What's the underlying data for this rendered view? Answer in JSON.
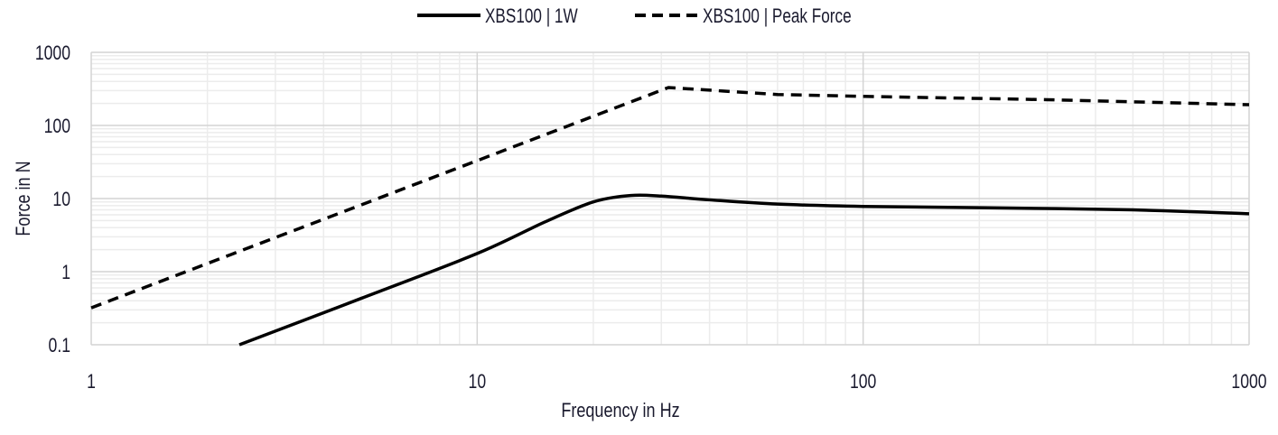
{
  "chart_data": {
    "type": "line",
    "title": "",
    "xlabel": "Frequency in Hz",
    "ylabel": "Force in N",
    "xscale": "log",
    "yscale": "log",
    "xlim": [
      1,
      1000
    ],
    "ylim": [
      0.1,
      1000
    ],
    "grid": true,
    "legend_position": "top-center",
    "x_ticks": [
      "1",
      "10",
      "100",
      "1000"
    ],
    "y_ticks": [
      "0.1",
      "1",
      "10",
      "100",
      "1000"
    ],
    "series": [
      {
        "name": "XBS100 | 1W",
        "style": "solid",
        "color": "#000000",
        "x": [
          2.42,
          5,
          10,
          15,
          20,
          25,
          30,
          40,
          60,
          100,
          200,
          500,
          1000
        ],
        "y": [
          0.1,
          0.43,
          1.77,
          4.8,
          9.0,
          11.0,
          10.8,
          9.6,
          8.4,
          7.8,
          7.5,
          7.0,
          6.2
        ]
      },
      {
        "name": "XBS100 | Peak Force",
        "style": "dashed",
        "color": "#000000",
        "x": [
          1,
          10,
          31.3,
          60,
          100,
          300,
          1000
        ],
        "y": [
          0.32,
          33,
          330,
          265,
          250,
          225,
          192
        ]
      }
    ]
  }
}
